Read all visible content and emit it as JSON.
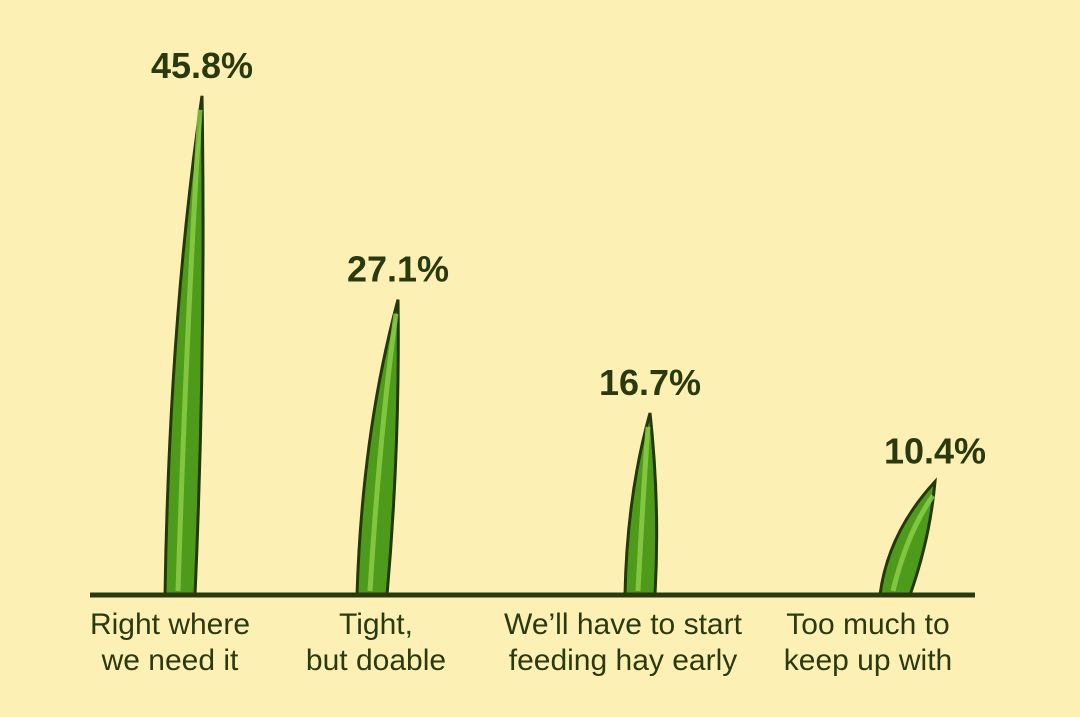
{
  "chart_data": {
    "type": "bar",
    "categories": [
      [
        "Right where",
        "we need it"
      ],
      [
        "Tight,",
        "but doable"
      ],
      [
        "We’ll have to start",
        "feeding hay early"
      ],
      [
        "Too much to",
        "keep up with"
      ]
    ],
    "values": [
      45.8,
      27.1,
      16.7,
      10.4
    ],
    "value_labels": [
      "45.8%",
      "27.1%",
      "16.7%",
      "10.4%"
    ],
    "color": "#4e9b1c"
  }
}
